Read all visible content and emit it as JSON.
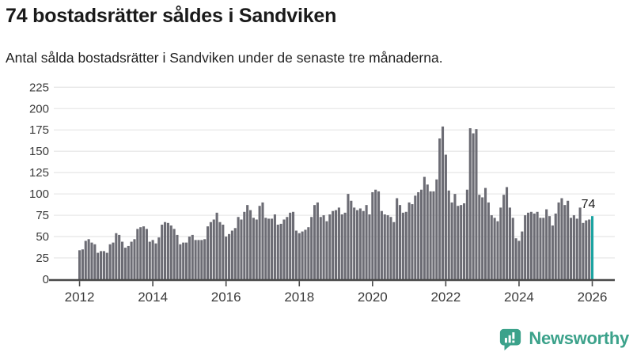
{
  "header": {
    "title": "74 bostadsrätter såldes i Sandviken",
    "subtitle": "Antal sålda bostadsrätter i Sandviken under de senaste tre månaderna."
  },
  "chart_data": {
    "type": "bar",
    "title": "74 bostadsrätter såldes i Sandviken",
    "subtitle": "Antal sålda bostadsrätter i Sandviken under de senaste tre månaderna.",
    "unit": "bostadsrätter (rullande tre månader)",
    "frequency": "monthly",
    "start_month": "2012-01",
    "end_month": "2026-01",
    "ylim": [
      0,
      235
    ],
    "grid": true,
    "y_ticks": [
      0,
      25,
      50,
      75,
      100,
      125,
      150,
      175,
      200,
      225
    ],
    "x_tick_labels": [
      "2012",
      "2014",
      "2016",
      "2018",
      "2020",
      "2022",
      "2024",
      "2026"
    ],
    "bar_color": "#6c6c74",
    "highlight_color": "#1ba3a1",
    "highlight_index": 168,
    "highlight_label": "74",
    "values": [
      34,
      35,
      45,
      47,
      43,
      41,
      31,
      33,
      33,
      31,
      41,
      43,
      54,
      52,
      44,
      37,
      39,
      44,
      47,
      59,
      61,
      62,
      59,
      44,
      46,
      42,
      49,
      64,
      67,
      66,
      63,
      59,
      52,
      41,
      43,
      43,
      50,
      52,
      46,
      46,
      46,
      47,
      62,
      67,
      70,
      78,
      67,
      64,
      50,
      53,
      57,
      60,
      73,
      70,
      79,
      87,
      81,
      72,
      70,
      86,
      90,
      72,
      71,
      71,
      76,
      64,
      65,
      70,
      73,
      78,
      79,
      57,
      54,
      56,
      58,
      61,
      73,
      87,
      90,
      73,
      75,
      68,
      76,
      80,
      81,
      84,
      76,
      78,
      100,
      92,
      84,
      81,
      83,
      80,
      87,
      76,
      102,
      105,
      103,
      80,
      76,
      75,
      73,
      67,
      95,
      87,
      78,
      79,
      90,
      88,
      98,
      102,
      105,
      120,
      111,
      103,
      103,
      117,
      165,
      179,
      146,
      104,
      90,
      100,
      86,
      87,
      89,
      105,
      177,
      171,
      176,
      99,
      96,
      107,
      90,
      75,
      72,
      68,
      84,
      99,
      108,
      84,
      72,
      48,
      45,
      56,
      75,
      78,
      79,
      77,
      79,
      72,
      72,
      82,
      74,
      63,
      77,
      90,
      95,
      87,
      92,
      72,
      75,
      71,
      84,
      66,
      69,
      70,
      74
    ]
  },
  "branding": {
    "logo_text": "Newsworthy",
    "logo_color": "#3ca28b"
  },
  "colors": {
    "bar": "#6c6c74",
    "highlight": "#1ba3a1",
    "gridline": "#e8e8e8",
    "axis": "#494949",
    "tick_text": "#3b3b3b",
    "title_text": "#1a1a1a"
  }
}
